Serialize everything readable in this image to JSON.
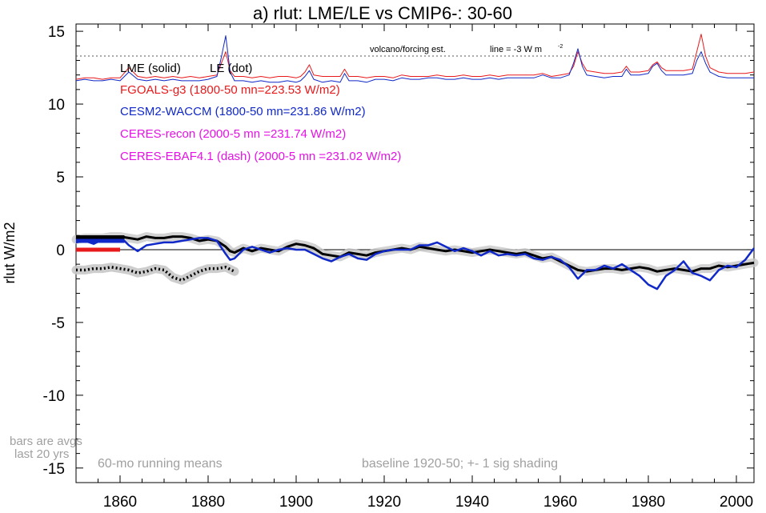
{
  "chart_data": {
    "type": "line",
    "title": "a) rlut: LME/LE vs CMIP6-: 30-60",
    "ylabel": "rlut W/m2",
    "xlabel": "",
    "xlim": [
      1850,
      2004
    ],
    "ylim": [
      -16,
      15.5
    ],
    "x_ticks": [
      1860,
      1880,
      1900,
      1920,
      1940,
      1960,
      1980,
      2000
    ],
    "y_ticks": [
      15,
      10,
      5,
      0,
      -5,
      -10,
      -15
    ],
    "grid": false,
    "legend": {
      "lme": "LME (solid)",
      "le": "LE (dot)",
      "fgoals": "FGOALS-g3 (1800-50 mn=223.53 W/m2)",
      "cesm": "CESM2-WACCM (1800-50 mn=231.86 W/m2)",
      "ceres_recon": "CERES-recon (2000-5 mn =231.74 W/m2)",
      "ceres_ebaf": "CERES-EBAF4.1 (dash) (2000-5 mn =231.02 W/m2)"
    },
    "annotations": {
      "volcano": "volcano/forcing est.",
      "line": "line = -3 W m",
      "line_sup": "-2",
      "bars1": "bars are avgs",
      "bars2": "last 20 yrs",
      "running": "60-mo running means",
      "baseline": "baseline 1920-50; +- 1 sig shading"
    },
    "colors": {
      "lme": "#000000",
      "fgoals": "#e8191b",
      "cesm": "#1028c8",
      "ceres": "#e512e5",
      "shade": "#c8c8c8",
      "note": "#a0a0a0"
    },
    "forcing_ref_line": 13.3,
    "series": [
      {
        "name": "FGOALS-g3",
        "color": "#e8191b",
        "x": [
          1850,
          1852,
          1854,
          1856,
          1858,
          1860,
          1862,
          1864,
          1866,
          1868,
          1870,
          1872,
          1874,
          1876,
          1878,
          1880,
          1882,
          1883,
          1884,
          1885,
          1886,
          1888,
          1890,
          1892,
          1894,
          1896,
          1898,
          1900,
          1901,
          1902,
          1903,
          1904,
          1906,
          1908,
          1910,
          1911,
          1912,
          1914,
          1916,
          1918,
          1920,
          1922,
          1924,
          1926,
          1928,
          1930,
          1932,
          1934,
          1936,
          1938,
          1940,
          1942,
          1944,
          1946,
          1948,
          1950,
          1952,
          1954,
          1956,
          1958,
          1960,
          1962,
          1963,
          1964,
          1965,
          1966,
          1968,
          1970,
          1972,
          1974,
          1975,
          1976,
          1978,
          1980,
          1981,
          1982,
          1983,
          1984,
          1986,
          1988,
          1990,
          1991,
          1992,
          1993,
          1994,
          1996,
          1998,
          2000,
          2002,
          2004
        ],
        "y": [
          11.7,
          11.8,
          11.8,
          11.7,
          11.8,
          11.8,
          12.5,
          11.9,
          11.8,
          11.9,
          11.8,
          11.9,
          11.8,
          11.9,
          11.8,
          11.9,
          12.0,
          12.8,
          13.6,
          12.3,
          11.9,
          11.9,
          11.8,
          11.9,
          11.8,
          11.9,
          11.9,
          11.8,
          11.9,
          12.2,
          12.7,
          12.0,
          11.9,
          11.9,
          11.9,
          12.4,
          11.9,
          11.9,
          11.8,
          11.9,
          11.9,
          11.8,
          12.0,
          11.9,
          11.9,
          11.9,
          12.0,
          11.9,
          11.9,
          12.0,
          11.9,
          11.9,
          12.0,
          11.9,
          12.0,
          12.0,
          12.0,
          12.0,
          12.1,
          11.9,
          12.0,
          12.1,
          12.6,
          13.6,
          12.8,
          12.3,
          12.2,
          12.1,
          12.1,
          12.2,
          12.6,
          12.2,
          12.2,
          12.3,
          12.7,
          12.9,
          12.5,
          12.3,
          12.3,
          12.3,
          12.4,
          13.6,
          14.8,
          13.3,
          12.5,
          12.2,
          12.1,
          12.1,
          12.1,
          12.2
        ]
      },
      {
        "name": "CESM2-WACCM",
        "color": "#1028c8",
        "x": [
          1850,
          1852,
          1854,
          1856,
          1858,
          1860,
          1862,
          1864,
          1866,
          1868,
          1870,
          1872,
          1874,
          1876,
          1878,
          1880,
          1882,
          1883,
          1884,
          1885,
          1886,
          1888,
          1890,
          1892,
          1894,
          1896,
          1898,
          1900,
          1901,
          1902,
          1903,
          1904,
          1906,
          1908,
          1910,
          1911,
          1912,
          1914,
          1916,
          1918,
          1920,
          1922,
          1924,
          1926,
          1928,
          1930,
          1932,
          1934,
          1936,
          1938,
          1940,
          1942,
          1944,
          1946,
          1948,
          1950,
          1952,
          1954,
          1956,
          1958,
          1960,
          1962,
          1963,
          1964,
          1965,
          1966,
          1968,
          1970,
          1972,
          1974,
          1975,
          1976,
          1978,
          1980,
          1981,
          1982,
          1983,
          1984,
          1986,
          1988,
          1990,
          1991,
          1992,
          1993,
          1994,
          1996,
          1998,
          2000,
          2002,
          2004
        ],
        "y": [
          11.6,
          11.7,
          11.6,
          11.6,
          11.7,
          11.6,
          12.2,
          11.7,
          11.6,
          11.7,
          11.6,
          11.7,
          11.6,
          11.6,
          11.6,
          11.7,
          11.9,
          13.2,
          14.7,
          12.2,
          11.6,
          11.6,
          11.5,
          11.6,
          11.5,
          11.5,
          11.6,
          11.5,
          11.6,
          11.9,
          12.3,
          11.7,
          11.5,
          11.6,
          11.5,
          12.1,
          11.6,
          11.6,
          11.5,
          11.7,
          11.7,
          11.6,
          11.8,
          11.7,
          11.7,
          11.8,
          11.8,
          11.7,
          11.7,
          11.8,
          11.7,
          11.7,
          11.8,
          11.7,
          11.8,
          11.8,
          11.8,
          11.8,
          12.0,
          11.8,
          11.8,
          12.0,
          12.8,
          13.8,
          12.6,
          12.0,
          11.9,
          11.8,
          11.9,
          11.9,
          12.4,
          12.0,
          12.0,
          12.1,
          12.6,
          12.8,
          12.3,
          12.0,
          12.0,
          12.0,
          12.1,
          13.0,
          13.6,
          12.8,
          12.2,
          11.9,
          11.8,
          11.8,
          11.8,
          11.8
        ]
      },
      {
        "name": "LME",
        "color": "#000000",
        "x": [
          1850,
          1852,
          1854,
          1856,
          1858,
          1860,
          1862,
          1864,
          1866,
          1868,
          1870,
          1872,
          1874,
          1876,
          1878,
          1880,
          1882,
          1884,
          1885,
          1886,
          1888,
          1890,
          1892,
          1894,
          1896,
          1898,
          1900,
          1902,
          1904,
          1906,
          1908,
          1910,
          1912,
          1914,
          1916,
          1918,
          1920,
          1922,
          1924,
          1926,
          1928,
          1930,
          1932,
          1934,
          1936,
          1938,
          1940,
          1942,
          1944,
          1946,
          1948,
          1950,
          1952,
          1954,
          1956,
          1958,
          1960,
          1962,
          1964,
          1966,
          1968,
          1970,
          1972,
          1974,
          1976,
          1978,
          1980,
          1982,
          1984,
          1986,
          1988,
          1990,
          1992,
          1994,
          1996,
          1998,
          2000,
          2002,
          2004
        ],
        "y": [
          0.7,
          0.8,
          0.8,
          0.8,
          0.9,
          0.9,
          0.8,
          0.7,
          0.9,
          0.8,
          0.8,
          0.9,
          0.9,
          0.8,
          0.6,
          0.7,
          0.6,
          0.2,
          -0.1,
          -0.2,
          0.1,
          -0.1,
          0.1,
          0.0,
          -0.1,
          0.2,
          0.4,
          0.3,
          0.1,
          -0.3,
          -0.4,
          -0.5,
          -0.2,
          -0.3,
          -0.4,
          -0.2,
          -0.1,
          0.0,
          0.1,
          0.0,
          0.2,
          0.1,
          0.0,
          -0.1,
          0.0,
          -0.1,
          -0.2,
          -0.1,
          0.0,
          -0.1,
          -0.2,
          -0.3,
          -0.2,
          -0.4,
          -0.6,
          -0.5,
          -0.8,
          -1.1,
          -1.4,
          -1.5,
          -1.4,
          -1.3,
          -1.3,
          -1.4,
          -1.3,
          -1.2,
          -1.3,
          -1.5,
          -1.4,
          -1.3,
          -1.4,
          -1.5,
          -1.3,
          -1.3,
          -1.1,
          -1.2,
          -1.1,
          -1.0,
          -0.9
        ]
      },
      {
        "name": "CESM2-WACCM anomaly",
        "color": "#1028c8",
        "x": [
          1850,
          1852,
          1854,
          1856,
          1858,
          1860,
          1862,
          1864,
          1866,
          1868,
          1870,
          1872,
          1874,
          1876,
          1878,
          1880,
          1882,
          1884,
          1885,
          1886,
          1888,
          1890,
          1892,
          1894,
          1896,
          1898,
          1900,
          1902,
          1904,
          1906,
          1908,
          1910,
          1912,
          1914,
          1916,
          1918,
          1920,
          1922,
          1924,
          1926,
          1928,
          1930,
          1932,
          1934,
          1936,
          1938,
          1940,
          1942,
          1944,
          1946,
          1948,
          1950,
          1952,
          1954,
          1956,
          1958,
          1960,
          1962,
          1964,
          1966,
          1968,
          1970,
          1972,
          1974,
          1976,
          1978,
          1980,
          1982,
          1984,
          1986,
          1988,
          1990,
          1992,
          1994,
          1996,
          1998,
          2000,
          2002,
          2004
        ],
        "y": [
          0.5,
          0.6,
          0.4,
          0.7,
          0.8,
          0.9,
          0.3,
          -0.1,
          0.3,
          0.4,
          0.5,
          0.5,
          0.6,
          0.7,
          0.8,
          0.8,
          0.6,
          -0.3,
          -0.7,
          -0.6,
          0.0,
          0.2,
          0.0,
          -0.2,
          0.0,
          0.1,
          0.0,
          0.0,
          -0.3,
          -0.6,
          -0.8,
          -0.5,
          -0.3,
          -0.6,
          -0.7,
          -0.3,
          -0.1,
          0.0,
          0.0,
          0.0,
          0.3,
          0.3,
          0.5,
          0.2,
          -0.1,
          0.1,
          -0.1,
          -0.4,
          -0.1,
          -0.4,
          -0.3,
          -0.4,
          -0.3,
          -0.6,
          -0.7,
          -0.5,
          -0.7,
          -1.2,
          -2.0,
          -1.4,
          -1.4,
          -1.1,
          -1.3,
          -1.0,
          -1.4,
          -1.8,
          -2.4,
          -2.7,
          -1.8,
          -1.4,
          -0.8,
          -1.6,
          -1.8,
          -2.1,
          -1.4,
          -1.1,
          -1.2,
          -0.7,
          0.1
        ]
      },
      {
        "name": "LE",
        "color": "#000000",
        "x": [
          1850,
          1852,
          1854,
          1856,
          1858,
          1860,
          1862,
          1864,
          1866,
          1868,
          1870,
          1872,
          1874,
          1876,
          1878,
          1880,
          1882,
          1884,
          1886
        ],
        "y": [
          -1.4,
          -1.4,
          -1.3,
          -1.3,
          -1.2,
          -1.3,
          -1.4,
          -1.6,
          -1.5,
          -1.3,
          -1.4,
          -1.9,
          -2.1,
          -1.8,
          -1.5,
          -1.3,
          -1.3,
          -1.2,
          -1.5
        ]
      }
    ],
    "bars": [
      {
        "name": "LME",
        "color": "#000000",
        "x_from": 1850,
        "x_to": 1861,
        "y": 0.85
      },
      {
        "name": "CESM2-WACCM",
        "color": "#1028c8",
        "x_from": 1850,
        "x_to": 1861,
        "y": 0.6
      },
      {
        "name": "FGOALS-g3",
        "color": "#e8191b",
        "x_from": 1850,
        "x_to": 1860,
        "y": 0.0
      }
    ]
  }
}
